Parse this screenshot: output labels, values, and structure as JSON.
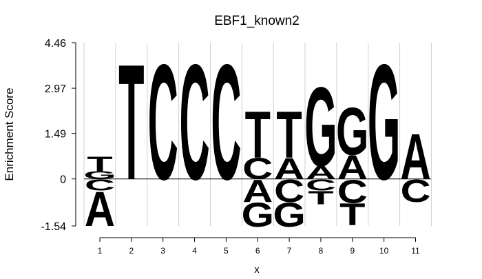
{
  "chart_data": {
    "type": "sequence-logo",
    "title": "EBF1_known2",
    "xlabel": "x",
    "ylabel": "Enrichment Score",
    "ylim": [
      -1.54,
      4.46
    ],
    "yticks": [
      "4.46",
      "2.97",
      "1.49",
      "0",
      "-1.54"
    ],
    "ytick_values": [
      4.46,
      2.97,
      1.49,
      0,
      -1.54
    ],
    "positions": [
      "1",
      "2",
      "3",
      "4",
      "5",
      "6",
      "7",
      "8",
      "9",
      "10",
      "11"
    ],
    "grid": "vertical",
    "colors": {
      "A": "#d7191c",
      "C": "#fdae61",
      "G": "#a6d96a",
      "T": "#2b83ba"
    },
    "columns": [
      {
        "pos": "1",
        "positive": [
          {
            "letter": "G",
            "value": 0.25
          },
          {
            "letter": "T",
            "value": 0.5
          }
        ],
        "negative": [
          {
            "letter": "C",
            "value": 0.38
          },
          {
            "letter": "A",
            "value": 1.16
          }
        ]
      },
      {
        "pos": "2",
        "positive": [
          {
            "letter": "T",
            "value": 3.86
          }
        ],
        "negative": []
      },
      {
        "pos": "3",
        "positive": [
          {
            "letter": "C",
            "value": 3.86
          }
        ],
        "negative": []
      },
      {
        "pos": "4",
        "positive": [
          {
            "letter": "C",
            "value": 3.86
          }
        ],
        "negative": []
      },
      {
        "pos": "5",
        "positive": [
          {
            "letter": "C",
            "value": 3.86
          }
        ],
        "negative": []
      },
      {
        "pos": "6",
        "positive": [
          {
            "letter": "C",
            "value": 0.71
          },
          {
            "letter": "T",
            "value": 1.56
          }
        ],
        "negative": [
          {
            "letter": "A",
            "value": 0.75
          },
          {
            "letter": "G",
            "value": 0.81
          }
        ]
      },
      {
        "pos": "7",
        "positive": [
          {
            "letter": "A",
            "value": 0.71
          },
          {
            "letter": "T",
            "value": 1.56
          }
        ],
        "negative": [
          {
            "letter": "C",
            "value": 0.75
          },
          {
            "letter": "G",
            "value": 0.81
          }
        ]
      },
      {
        "pos": "8",
        "positive": [
          {
            "letter": "A",
            "value": 0.43
          },
          {
            "letter": "G",
            "value": 2.65
          }
        ],
        "negative": [
          {
            "letter": "C",
            "value": 0.38
          },
          {
            "letter": "T",
            "value": 0.45
          }
        ]
      },
      {
        "pos": "9",
        "positive": [
          {
            "letter": "A",
            "value": 0.79
          },
          {
            "letter": "G",
            "value": 1.59
          }
        ],
        "negative": [
          {
            "letter": "C",
            "value": 0.78
          },
          {
            "letter": "T",
            "value": 0.74
          }
        ]
      },
      {
        "pos": "10",
        "positive": [
          {
            "letter": "G",
            "value": 3.86
          }
        ],
        "negative": []
      },
      {
        "pos": "11",
        "positive": [
          {
            "letter": "A",
            "value": 1.52
          }
        ],
        "negative": [
          {
            "letter": "C",
            "value": 0.75
          }
        ]
      }
    ]
  }
}
